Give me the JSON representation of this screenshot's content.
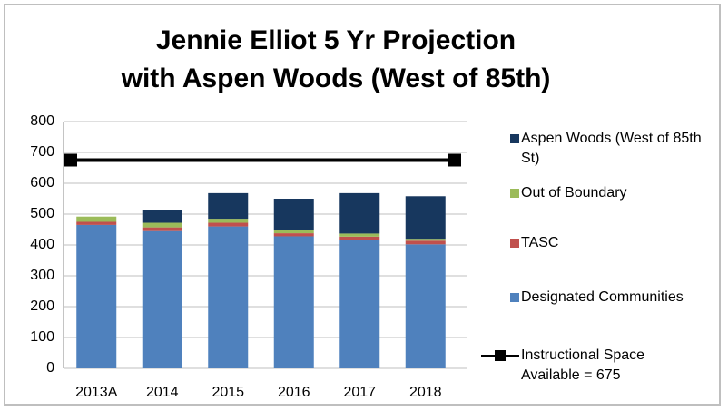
{
  "chart_data": {
    "type": "stacked-bar",
    "title": [
      "Jennie Elliot 5 Yr Projection",
      "with Aspen Woods (West of 85th)"
    ],
    "categories": [
      "2013A",
      "2014",
      "2015",
      "2016",
      "2017",
      "2018"
    ],
    "series": [
      {
        "name": "Designated Communities",
        "color": "#4f81bd",
        "values": [
          465,
          445,
          460,
          428,
          415,
          402
        ]
      },
      {
        "name": "TASC",
        "color": "#c0504d",
        "values": [
          10,
          12,
          12,
          10,
          12,
          12
        ]
      },
      {
        "name": "Out of Boundary",
        "color": "#9bbb59",
        "values": [
          17,
          15,
          13,
          10,
          10,
          6
        ]
      },
      {
        "name": "Aspen Woods (West of 85th St)",
        "color": "#17375e",
        "values": [
          0,
          40,
          83,
          102,
          131,
          138
        ]
      }
    ],
    "reference_line": {
      "name": "Instructional Space Available = 675",
      "value": 675,
      "color": "#000000"
    },
    "ylim": [
      0,
      800
    ],
    "yticks": [
      0,
      100,
      200,
      300,
      400,
      500,
      600,
      700,
      800
    ],
    "grid": true,
    "legend": "right"
  }
}
